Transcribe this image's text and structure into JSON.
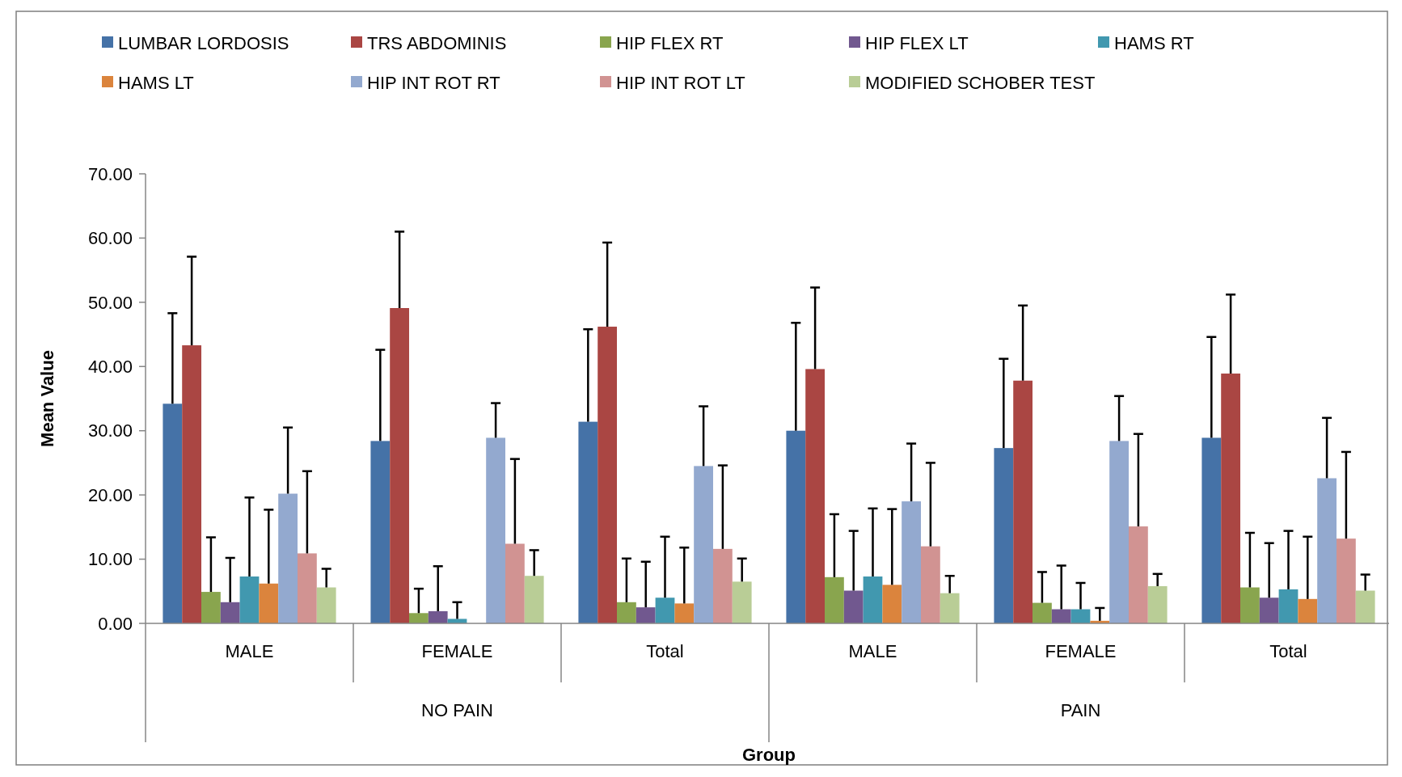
{
  "chart_data": {
    "type": "bar",
    "xlabel": "Group",
    "ylabel": "Mean Value",
    "categories": [
      "MALE",
      "FEMALE",
      "Total",
      "MALE",
      "FEMALE",
      "Total"
    ],
    "annotations": [
      "NO PAIN",
      "PAIN"
    ],
    "ylim": [
      0,
      70
    ],
    "yticks": [
      {
        "value": 0,
        "label": "0.00"
      },
      {
        "value": 10,
        "label": "10.00"
      },
      {
        "value": 20,
        "label": "20.00"
      },
      {
        "value": 30,
        "label": "30.00"
      },
      {
        "value": 40,
        "label": "40.00"
      },
      {
        "value": 50,
        "label": "50.00"
      },
      {
        "value": 60,
        "label": "60.00"
      },
      {
        "value": 70,
        "label": "70.00"
      }
    ],
    "legend": "top",
    "grid": false,
    "series": [
      {
        "name": "LUMBAR LORDOSIS",
        "color": "#4572a7",
        "values": [
          34.2,
          28.4,
          31.4,
          30.0,
          27.3,
          28.9
        ],
        "errors": [
          [
            34.2,
            48.3
          ],
          [
            28.4,
            42.6
          ],
          [
            31.4,
            45.8
          ],
          [
            30.0,
            46.8
          ],
          [
            27.3,
            41.2
          ],
          [
            28.9,
            44.6
          ]
        ]
      },
      {
        "name": "TRS ABDOMINIS",
        "color": "#aa4643",
        "values": [
          43.3,
          49.1,
          46.2,
          39.6,
          37.8,
          38.9
        ],
        "errors": [
          [
            43.3,
            57.1
          ],
          [
            49.1,
            61.0
          ],
          [
            46.2,
            59.3
          ],
          [
            39.6,
            52.3
          ],
          [
            37.8,
            49.5
          ],
          [
            38.9,
            51.2
          ]
        ]
      },
      {
        "name": "HIP FLEX RT",
        "color": "#89a54e",
        "values": [
          4.9,
          1.6,
          3.3,
          7.2,
          3.2,
          5.6
        ],
        "errors": [
          [
            4.9,
            13.4
          ],
          [
            1.6,
            5.4
          ],
          [
            3.3,
            10.1
          ],
          [
            7.2,
            17.0
          ],
          [
            3.2,
            8.0
          ],
          [
            5.6,
            14.1
          ]
        ]
      },
      {
        "name": "HIP FLEX LT",
        "color": "#71588f",
        "values": [
          3.3,
          1.9,
          2.5,
          5.1,
          2.2,
          4.0
        ],
        "errors": [
          [
            3.3,
            10.2
          ],
          [
            1.9,
            8.9
          ],
          [
            2.5,
            9.6
          ],
          [
            5.1,
            14.4
          ],
          [
            2.2,
            9.0
          ],
          [
            4.0,
            12.5
          ]
        ]
      },
      {
        "name": "HAMS RT",
        "color": "#4198af",
        "values": [
          7.3,
          0.7,
          4.0,
          7.3,
          2.2,
          5.3
        ],
        "errors": [
          [
            7.3,
            19.6
          ],
          [
            0.7,
            3.3
          ],
          [
            4.0,
            13.5
          ],
          [
            7.3,
            17.9
          ],
          [
            2.2,
            6.3
          ],
          [
            5.3,
            14.4
          ]
        ]
      },
      {
        "name": "HAMS LT",
        "color": "#db843d",
        "values": [
          6.2,
          null,
          3.1,
          6.0,
          0.4,
          3.8
        ],
        "errors": [
          [
            6.2,
            17.7
          ],
          null,
          [
            3.1,
            11.8
          ],
          [
            6.0,
            17.8
          ],
          [
            0.4,
            2.4
          ],
          [
            3.8,
            13.5
          ]
        ]
      },
      {
        "name": "HIP INT ROT RT",
        "color": "#93a9cf",
        "values": [
          20.2,
          28.9,
          24.5,
          19.0,
          28.4,
          22.6
        ],
        "errors": [
          [
            20.2,
            30.5
          ],
          [
            28.9,
            34.3
          ],
          [
            24.5,
            33.8
          ],
          [
            19.0,
            28.0
          ],
          [
            28.4,
            35.4
          ],
          [
            22.6,
            32.0
          ]
        ]
      },
      {
        "name": "HIP INT ROT LT",
        "color": "#d19392",
        "values": [
          10.9,
          12.4,
          11.6,
          12.0,
          15.1,
          13.2
        ],
        "errors": [
          [
            10.9,
            23.7
          ],
          [
            12.4,
            25.6
          ],
          [
            11.6,
            24.6
          ],
          [
            12.0,
            25.0
          ],
          [
            15.1,
            29.5
          ],
          [
            13.2,
            26.7
          ]
        ]
      },
      {
        "name": "MODIFIED SCHOBER TEST",
        "color": "#b9cd96",
        "values": [
          5.6,
          7.4,
          6.5,
          4.7,
          5.8,
          5.1
        ],
        "errors": [
          [
            5.6,
            8.5
          ],
          [
            7.4,
            11.4
          ],
          [
            6.5,
            10.1
          ],
          [
            4.7,
            7.4
          ],
          [
            5.8,
            7.7
          ],
          [
            5.1,
            7.6
          ]
        ]
      }
    ]
  }
}
